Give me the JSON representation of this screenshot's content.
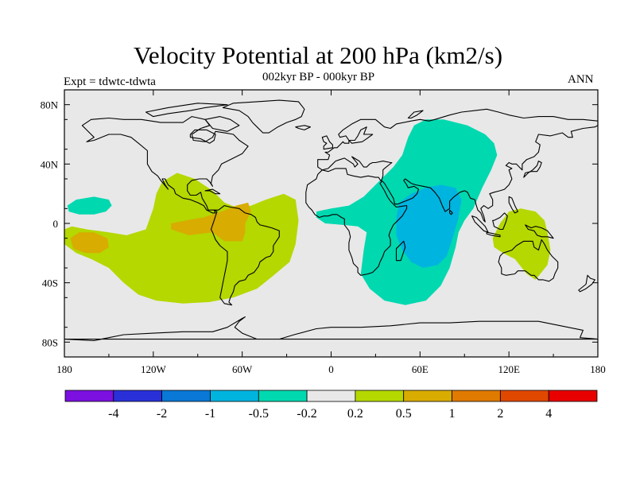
{
  "title": "Velocity Potential at 200 hPa (km2/s)",
  "left_label": "Expt = tdwtc-tdwta",
  "center_label": "002kyr BP - 000kyr BP",
  "right_label": "ANN",
  "map": {
    "projection": "cylindrical-equidistant",
    "lon_range": [
      -180,
      180
    ],
    "lat_range": [
      -90,
      90
    ],
    "background_color": "#e8e8e8",
    "coastline_color": "#000000"
  },
  "lat_ticks": [
    {
      "lat": 80,
      "label": "80N"
    },
    {
      "lat": 40,
      "label": "40N"
    },
    {
      "lat": 0,
      "label": "0"
    },
    {
      "lat": -40,
      "label": "40S"
    },
    {
      "lat": -80,
      "label": "80S"
    }
  ],
  "lon_ticks": [
    {
      "lon": -180,
      "label": "180"
    },
    {
      "lon": -120,
      "label": "120W"
    },
    {
      "lon": -60,
      "label": "60W"
    },
    {
      "lon": 0,
      "label": "0"
    },
    {
      "lon": 60,
      "label": "60E"
    },
    {
      "lon": 120,
      "label": "120E"
    },
    {
      "lon": 180,
      "label": "180"
    }
  ],
  "colorbar": {
    "colors": [
      "#7b10e0",
      "#2a30d8",
      "#0a78d6",
      "#00b4e0",
      "#00d8b0",
      "#e8e8e8",
      "#b4d800",
      "#d8ac00",
      "#e07a00",
      "#e04800",
      "#e80000"
    ],
    "labels": [
      "-4",
      "-2",
      "-1",
      "-0.5",
      "-0.2",
      "0.2",
      "0.5",
      "1",
      "2",
      "4"
    ]
  },
  "contour_regions": [
    {
      "name": "olive-region-americas",
      "color": "#b4d800",
      "points": [
        [
          -180,
          -4
        ],
        [
          -175,
          -2
        ],
        [
          -165,
          -4
        ],
        [
          -150,
          -6
        ],
        [
          -138,
          -8
        ],
        [
          -125,
          -4
        ],
        [
          -120,
          10
        ],
        [
          -118,
          20
        ],
        [
          -114,
          28
        ],
        [
          -104,
          34
        ],
        [
          -92,
          30
        ],
        [
          -80,
          22
        ],
        [
          -72,
          14
        ],
        [
          -62,
          10
        ],
        [
          -54,
          12
        ],
        [
          -44,
          16
        ],
        [
          -32,
          20
        ],
        [
          -24,
          16
        ],
        [
          -22,
          2
        ],
        [
          -24,
          -14
        ],
        [
          -28,
          -26
        ],
        [
          -40,
          -36
        ],
        [
          -50,
          -44
        ],
        [
          -66,
          -50
        ],
        [
          -82,
          -53
        ],
        [
          -100,
          -54
        ],
        [
          -118,
          -52
        ],
        [
          -130,
          -48
        ],
        [
          -140,
          -40
        ],
        [
          -150,
          -30
        ],
        [
          -162,
          -24
        ],
        [
          -172,
          -20
        ],
        [
          -180,
          -14
        ]
      ]
    },
    {
      "name": "orange-region-tropical-america",
      "color": "#d8ac00",
      "points": [
        [
          -108,
          0
        ],
        [
          -98,
          2
        ],
        [
          -86,
          4
        ],
        [
          -74,
          8
        ],
        [
          -64,
          12
        ],
        [
          -56,
          14
        ],
        [
          -54,
          8
        ],
        [
          -58,
          0
        ],
        [
          -58,
          -6
        ],
        [
          -60,
          -12
        ],
        [
          -72,
          -12
        ],
        [
          -80,
          -6
        ],
        [
          -96,
          -8
        ],
        [
          -108,
          -4
        ]
      ]
    },
    {
      "name": "orange-region-pacific",
      "color": "#d8ac00",
      "points": [
        [
          -176,
          -10
        ],
        [
          -170,
          -6
        ],
        [
          -160,
          -6
        ],
        [
          -151,
          -10
        ],
        [
          -150,
          -16
        ],
        [
          -156,
          -20
        ],
        [
          -166,
          -20
        ],
        [
          -174,
          -17
        ]
      ]
    },
    {
      "name": "olive-region-maritime",
      "color": "#b4d800",
      "points": [
        [
          109,
          -10
        ],
        [
          114,
          0
        ],
        [
          120,
          8
        ],
        [
          128,
          10
        ],
        [
          138,
          8
        ],
        [
          144,
          2
        ],
        [
          146,
          -6
        ],
        [
          148,
          -18
        ],
        [
          146,
          -28
        ],
        [
          138,
          -38
        ],
        [
          132,
          -34
        ],
        [
          124,
          -24
        ],
        [
          116,
          -20
        ],
        [
          110,
          -16
        ]
      ]
    },
    {
      "name": "teal-region-pacific",
      "color": "#00d8b0",
      "points": [
        [
          -178,
          12
        ],
        [
          -172,
          16
        ],
        [
          -160,
          18
        ],
        [
          -150,
          16
        ],
        [
          -148,
          12
        ],
        [
          -152,
          8
        ],
        [
          -160,
          6
        ],
        [
          -170,
          6
        ],
        [
          -177,
          8
        ]
      ]
    },
    {
      "name": "teal-region-eurasia-africa",
      "color": "#00d8b0",
      "points": [
        [
          52,
          58
        ],
        [
          56,
          66
        ],
        [
          64,
          70
        ],
        [
          76,
          70
        ],
        [
          92,
          66
        ],
        [
          104,
          60
        ],
        [
          110,
          54
        ],
        [
          112,
          46
        ],
        [
          108,
          36
        ],
        [
          102,
          24
        ],
        [
          96,
          10
        ],
        [
          90,
          2
        ],
        [
          86,
          -6
        ],
        [
          84,
          -16
        ],
        [
          80,
          -30
        ],
        [
          74,
          -42
        ],
        [
          64,
          -52
        ],
        [
          50,
          -55
        ],
        [
          36,
          -52
        ],
        [
          26,
          -44
        ],
        [
          20,
          -34
        ],
        [
          22,
          -18
        ],
        [
          24,
          -6
        ],
        [
          18,
          -2
        ],
        [
          8,
          -1
        ],
        [
          -4,
          0
        ],
        [
          -10,
          4
        ],
        [
          -10,
          8
        ],
        [
          0,
          10
        ],
        [
          12,
          12
        ],
        [
          22,
          18
        ],
        [
          30,
          26
        ],
        [
          36,
          32
        ],
        [
          42,
          38
        ],
        [
          48,
          46
        ]
      ]
    },
    {
      "name": "blue-region-indian-ocean",
      "color": "#00b4e0",
      "points": [
        [
          46,
          14
        ],
        [
          54,
          20
        ],
        [
          64,
          24
        ],
        [
          74,
          26
        ],
        [
          84,
          24
        ],
        [
          88,
          16
        ],
        [
          86,
          4
        ],
        [
          82,
          -10
        ],
        [
          78,
          -22
        ],
        [
          72,
          -28
        ],
        [
          62,
          -30
        ],
        [
          54,
          -26
        ],
        [
          48,
          -18
        ],
        [
          44,
          -8
        ],
        [
          44,
          4
        ]
      ]
    }
  ]
}
